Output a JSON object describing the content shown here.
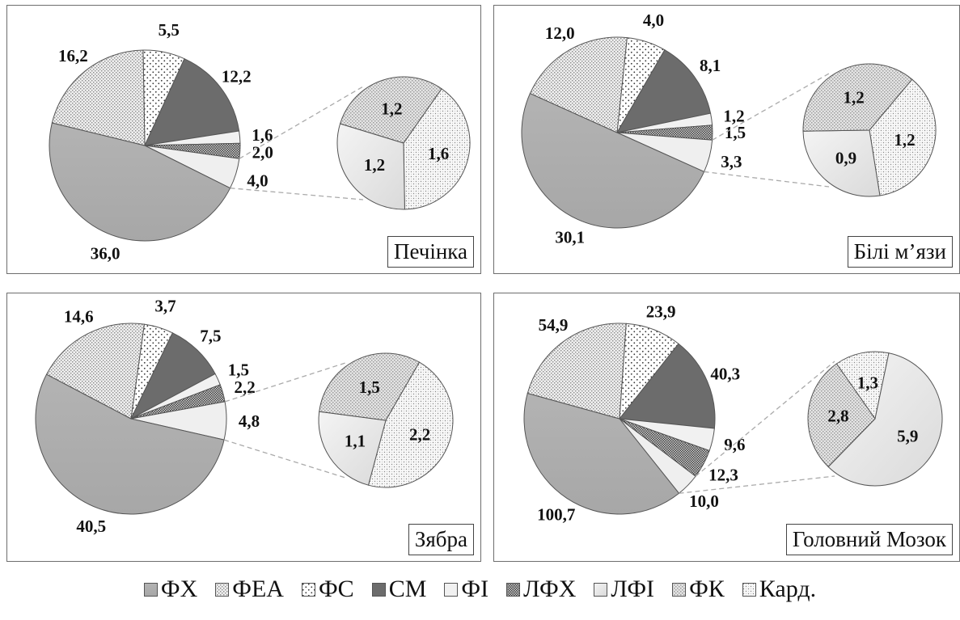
{
  "legend": [
    {
      "key": "fx",
      "label": "ФХ"
    },
    {
      "key": "fea",
      "label": "ФЕА"
    },
    {
      "key": "fs",
      "label": "ФС"
    },
    {
      "key": "cm",
      "label": "СМ"
    },
    {
      "key": "fi",
      "label": "ФІ"
    },
    {
      "key": "lfx",
      "label": "ЛФХ"
    },
    {
      "key": "lfi",
      "label": "ЛФІ"
    },
    {
      "key": "fk",
      "label": "ФК"
    },
    {
      "key": "kard",
      "label": "Кард."
    }
  ],
  "chart_data": [
    {
      "type": "pie",
      "panel_label": "Печінка",
      "slices": [
        {
          "key": "fx",
          "value": 36.0,
          "label": "36,0"
        },
        {
          "key": "fea",
          "value": 16.2,
          "label": "16,2"
        },
        {
          "key": "fs",
          "value": 5.5,
          "label": "5,5"
        },
        {
          "key": "cm",
          "value": 12.2,
          "label": "12,2"
        },
        {
          "key": "fi",
          "value": 1.6,
          "label": "1,6"
        },
        {
          "key": "lfx",
          "value": 2.0,
          "label": "2,0"
        },
        {
          "key": "other",
          "value": 4.0,
          "label": "4,0"
        }
      ],
      "detail": [
        {
          "key": "kard",
          "value": 1.6,
          "label": "1,6"
        },
        {
          "key": "lfi",
          "value": 1.2,
          "label": "1,2"
        },
        {
          "key": "fk",
          "value": 1.2,
          "label": "1,2"
        }
      ]
    },
    {
      "type": "pie",
      "panel_label": "Білі м’язи",
      "slices": [
        {
          "key": "fx",
          "value": 30.1,
          "label": "30,1"
        },
        {
          "key": "fea",
          "value": 12.0,
          "label": "12,0"
        },
        {
          "key": "fs",
          "value": 4.0,
          "label": "4,0"
        },
        {
          "key": "cm",
          "value": 8.1,
          "label": "8,1"
        },
        {
          "key": "fi",
          "value": 1.2,
          "label": "1,2"
        },
        {
          "key": "lfx",
          "value": 1.5,
          "label": "1,5"
        },
        {
          "key": "other",
          "value": 3.3,
          "label": "3,3"
        }
      ],
      "detail": [
        {
          "key": "kard",
          "value": 1.2,
          "label": "1,2"
        },
        {
          "key": "lfi",
          "value": 0.9,
          "label": "0,9"
        },
        {
          "key": "fk",
          "value": 1.2,
          "label": "1,2"
        }
      ]
    },
    {
      "type": "pie",
      "panel_label": "Зябра",
      "slices": [
        {
          "key": "fx",
          "value": 40.5,
          "label": "40,5"
        },
        {
          "key": "fea",
          "value": 14.6,
          "label": "14,6"
        },
        {
          "key": "fs",
          "value": 3.7,
          "label": "3,7"
        },
        {
          "key": "cm",
          "value": 7.5,
          "label": "7,5"
        },
        {
          "key": "fi",
          "value": 1.5,
          "label": "1,5"
        },
        {
          "key": "lfx",
          "value": 2.2,
          "label": "2,2"
        },
        {
          "key": "other",
          "value": 4.8,
          "label": "4,8"
        }
      ],
      "detail": [
        {
          "key": "kard",
          "value": 2.2,
          "label": "2,2"
        },
        {
          "key": "lfi",
          "value": 1.1,
          "label": "1,1"
        },
        {
          "key": "fk",
          "value": 1.5,
          "label": "1,5"
        }
      ]
    },
    {
      "type": "pie",
      "panel_label": "Головний Мозок",
      "slices": [
        {
          "key": "fx",
          "value": 100.7,
          "label": "100,7"
        },
        {
          "key": "fea",
          "value": 54.9,
          "label": "54,9"
        },
        {
          "key": "fs",
          "value": 23.9,
          "label": "23,9"
        },
        {
          "key": "cm",
          "value": 40.3,
          "label": "40,3"
        },
        {
          "key": "fi",
          "value": 9.6,
          "label": "9,6"
        },
        {
          "key": "lfx",
          "value": 12.3,
          "label": "12,3"
        },
        {
          "key": "other",
          "value": 10.0,
          "label": "10,0"
        }
      ],
      "detail": [
        {
          "key": "kard",
          "value": 1.3,
          "label": "1,3"
        },
        {
          "key": "lfi",
          "value": 5.9,
          "label": "5,9"
        },
        {
          "key": "fk",
          "value": 2.8,
          "label": "2,8"
        }
      ]
    }
  ]
}
